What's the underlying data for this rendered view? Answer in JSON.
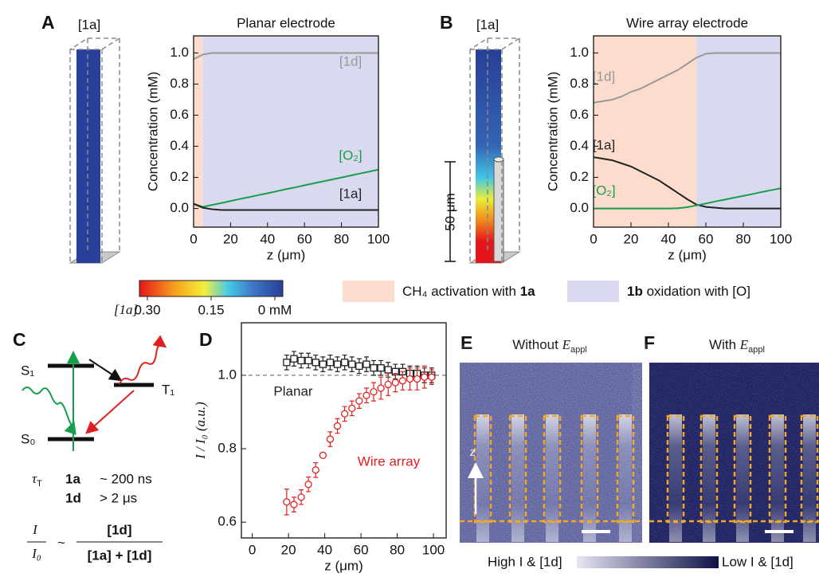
{
  "panel_letters": [
    "A",
    "B",
    "C",
    "D",
    "E",
    "F"
  ],
  "column_labels": [
    "[1a]",
    "[1a]"
  ],
  "scale_bar": "50 μm",
  "colorbar": {
    "label": "[1a]",
    "ticks": [
      {
        "value": 0.3,
        "label": "0.30"
      },
      {
        "value": 0.15,
        "label": "0.15"
      },
      {
        "value": 0,
        "label": "0 mM"
      }
    ]
  },
  "region_legend": [
    {
      "color": "#fcdccd",
      "parts": [
        {
          "text": "CH₄ activation with "
        },
        {
          "text": "1a",
          "bold": true
        }
      ]
    },
    {
      "color": "#d9d9ef",
      "parts": [
        {
          "text": "1b",
          "bold": true
        },
        {
          "text": " oxidation with [O]"
        }
      ]
    }
  ],
  "chart_data": [
    {
      "type": "line",
      "title": "Planar electrode",
      "xlabel": "z (μm)",
      "ylabel": "Concentration (mM)",
      "xlim": [
        0,
        100
      ],
      "ylim": [
        -0.12,
        1.11
      ],
      "xticks": [
        0,
        20,
        40,
        60,
        80,
        100
      ],
      "yticks": [
        {
          "value": 0,
          "label": "0.0"
        },
        {
          "value": 0.2,
          "label": "0.2"
        },
        {
          "value": 0.4,
          "label": "0.4"
        },
        {
          "value": 0.6,
          "label": "0.6"
        },
        {
          "value": 0.8,
          "label": "0.8"
        },
        {
          "value": 1,
          "label": "1.0"
        }
      ],
      "regions": [
        {
          "from": 0,
          "to": 5,
          "color": "#fcdccd"
        },
        {
          "from": 5,
          "to": 100,
          "color": "#d9d9ef"
        }
      ],
      "x": [
        0,
        5,
        10,
        15,
        20,
        25,
        30,
        35,
        40,
        45,
        50,
        55,
        60,
        65,
        70,
        75,
        80,
        85,
        90,
        95,
        100
      ],
      "series": [
        {
          "name": "[1d]",
          "color": "#999999",
          "values": [
            0.96,
            0.99,
            1.0,
            1.0,
            1.0,
            1.0,
            1.0,
            1.0,
            1.0,
            1.0,
            1.0,
            1.0,
            1.0,
            1.0,
            1.0,
            1.0,
            1.0,
            1.0,
            1.0,
            1.0,
            1.0
          ]
        },
        {
          "name": "[O₂]",
          "color": "#1a9e4a",
          "values": [
            0.03,
            0.01,
            0.023,
            0.035,
            0.048,
            0.061,
            0.073,
            0.086,
            0.098,
            0.111,
            0.124,
            0.136,
            0.149,
            0.162,
            0.174,
            0.187,
            0.199,
            0.212,
            0.225,
            0.237,
            0.25
          ]
        },
        {
          "name": "[1a]",
          "color": "#222222",
          "values": [
            0.03,
            0.005,
            -0.005,
            -0.01,
            -0.01,
            -0.01,
            -0.01,
            -0.01,
            -0.01,
            -0.01,
            -0.01,
            -0.01,
            -0.01,
            -0.01,
            -0.01,
            -0.01,
            -0.01,
            -0.01,
            -0.01,
            -0.01,
            -0.01
          ]
        }
      ]
    },
    {
      "type": "line",
      "title": "Wire array electrode",
      "xlabel": "z (μm)",
      "ylabel": "Concentration (mM)",
      "xlim": [
        0,
        100
      ],
      "ylim": [
        -0.12,
        1.11
      ],
      "xticks": [
        0,
        20,
        40,
        60,
        80,
        100
      ],
      "yticks": [
        {
          "value": 0,
          "label": "0.0"
        },
        {
          "value": 0.2,
          "label": "0.2"
        },
        {
          "value": 0.4,
          "label": "0.4"
        },
        {
          "value": 0.6,
          "label": "0.6"
        },
        {
          "value": 0.8,
          "label": "0.8"
        },
        {
          "value": 1,
          "label": "1.0"
        }
      ],
      "regions": [
        {
          "from": 0,
          "to": 55,
          "color": "#fcdccd"
        },
        {
          "from": 55,
          "to": 100,
          "color": "#d9d9ef"
        }
      ],
      "x": [
        0,
        5,
        10,
        15,
        20,
        25,
        30,
        35,
        40,
        45,
        50,
        55,
        60,
        65,
        70,
        75,
        80,
        85,
        90,
        95,
        100
      ],
      "series": [
        {
          "name": "[1d]",
          "color": "#999999",
          "values": [
            0.68,
            0.69,
            0.7,
            0.72,
            0.75,
            0.77,
            0.8,
            0.83,
            0.86,
            0.89,
            0.93,
            0.97,
            0.995,
            1.0,
            1.0,
            1.0,
            1.0,
            1.0,
            1.0,
            1.0,
            1.0
          ]
        },
        {
          "name": "[1a]",
          "color": "#222222",
          "values": [
            0.33,
            0.32,
            0.31,
            0.29,
            0.27,
            0.24,
            0.21,
            0.18,
            0.14,
            0.1,
            0.06,
            0.025,
            0.01,
            0.005,
            0,
            0,
            0,
            0,
            0,
            0,
            0
          ]
        },
        {
          "name": "[O₂]",
          "color": "#1a9e4a",
          "values": [
            0,
            0,
            0,
            0,
            0,
            0,
            0,
            0,
            0,
            0.002,
            0.008,
            0.02,
            0.032,
            0.045,
            0.057,
            0.069,
            0.081,
            0.093,
            0.106,
            0.118,
            0.13
          ]
        }
      ]
    },
    {
      "type": "scatter",
      "xlabel": "z (μm)",
      "ylabel": "I / I₀ (a.u.)",
      "xlim": [
        -6,
        107
      ],
      "ylim": [
        0.557,
        1.143
      ],
      "xticks": [
        0,
        20,
        40,
        60,
        80,
        100
      ],
      "yticks": [
        {
          "value": 0.6,
          "label": "0.6"
        },
        {
          "value": 0.8,
          "label": "0.8"
        },
        {
          "value": 1,
          "label": "1.0"
        }
      ],
      "reference_line": 1,
      "x": [
        19,
        23,
        27,
        31,
        35,
        39,
        43,
        47,
        51,
        55,
        59,
        63,
        67,
        71,
        75,
        79,
        83,
        87,
        91,
        95,
        99
      ],
      "series": [
        {
          "name": "Planar",
          "color": "#222222",
          "marker": "square",
          "values": [
            1.035,
            1.045,
            1.04,
            1.04,
            1.035,
            1.03,
            1.035,
            1.03,
            1.035,
            1.03,
            1.025,
            1.03,
            1.02,
            1.02,
            1.015,
            1.01,
            1.01,
            1.005,
            1.005,
            1.0,
            1.0
          ],
          "errors": [
            0.02,
            0.02,
            0.02,
            0.02,
            0.02,
            0.02,
            0.02,
            0.02,
            0.02,
            0.02,
            0.02,
            0.02,
            0.02,
            0.02,
            0.02,
            0.02,
            0.02,
            0.02,
            0.02,
            0.02,
            0.02
          ]
        },
        {
          "name": "Wire array",
          "color": "#e02020",
          "marker": "circle",
          "values": [
            0.655,
            0.648,
            0.668,
            0.703,
            0.742,
            0.782,
            0.826,
            0.862,
            0.895,
            0.91,
            0.93,
            0.945,
            0.955,
            0.965,
            0.975,
            0.98,
            0.985,
            0.99,
            0.99,
            0.995,
            0.995
          ],
          "errors": [
            0.035,
            0.02,
            0.02,
            0.02,
            0.02,
            0.005,
            0.02,
            0.02,
            0.02,
            0.02,
            0.02,
            0.02,
            0.025,
            0.03,
            0.03,
            0.025,
            0.025,
            0.03,
            0.03,
            0.03,
            0.02
          ]
        }
      ]
    }
  ],
  "energy_diagram": {
    "levels": [
      "S₁",
      "S₀",
      "T₁"
    ],
    "lifetime_symbol": {
      "symbol": "τ",
      "sub": "T"
    },
    "lifetimes": [
      {
        "species": "1a",
        "value": "~ 200 ns"
      },
      {
        "species": "1d",
        "value": "> 2 μs"
      }
    ]
  },
  "equation": {
    "lhs_num": "I",
    "lhs_den": "I₀",
    "relation": "~",
    "numerator": "[1d]",
    "denominator": "[1a] + [1d]"
  },
  "images": [
    {
      "title": "Without ",
      "symbol": "E",
      "sub": "appl",
      "axis_label": "z"
    },
    {
      "title": "With ",
      "symbol": "E",
      "sub": "appl"
    }
  ],
  "intensity_scale": {
    "high": "High I & [1d]",
    "low": "Low I & [1d]"
  }
}
